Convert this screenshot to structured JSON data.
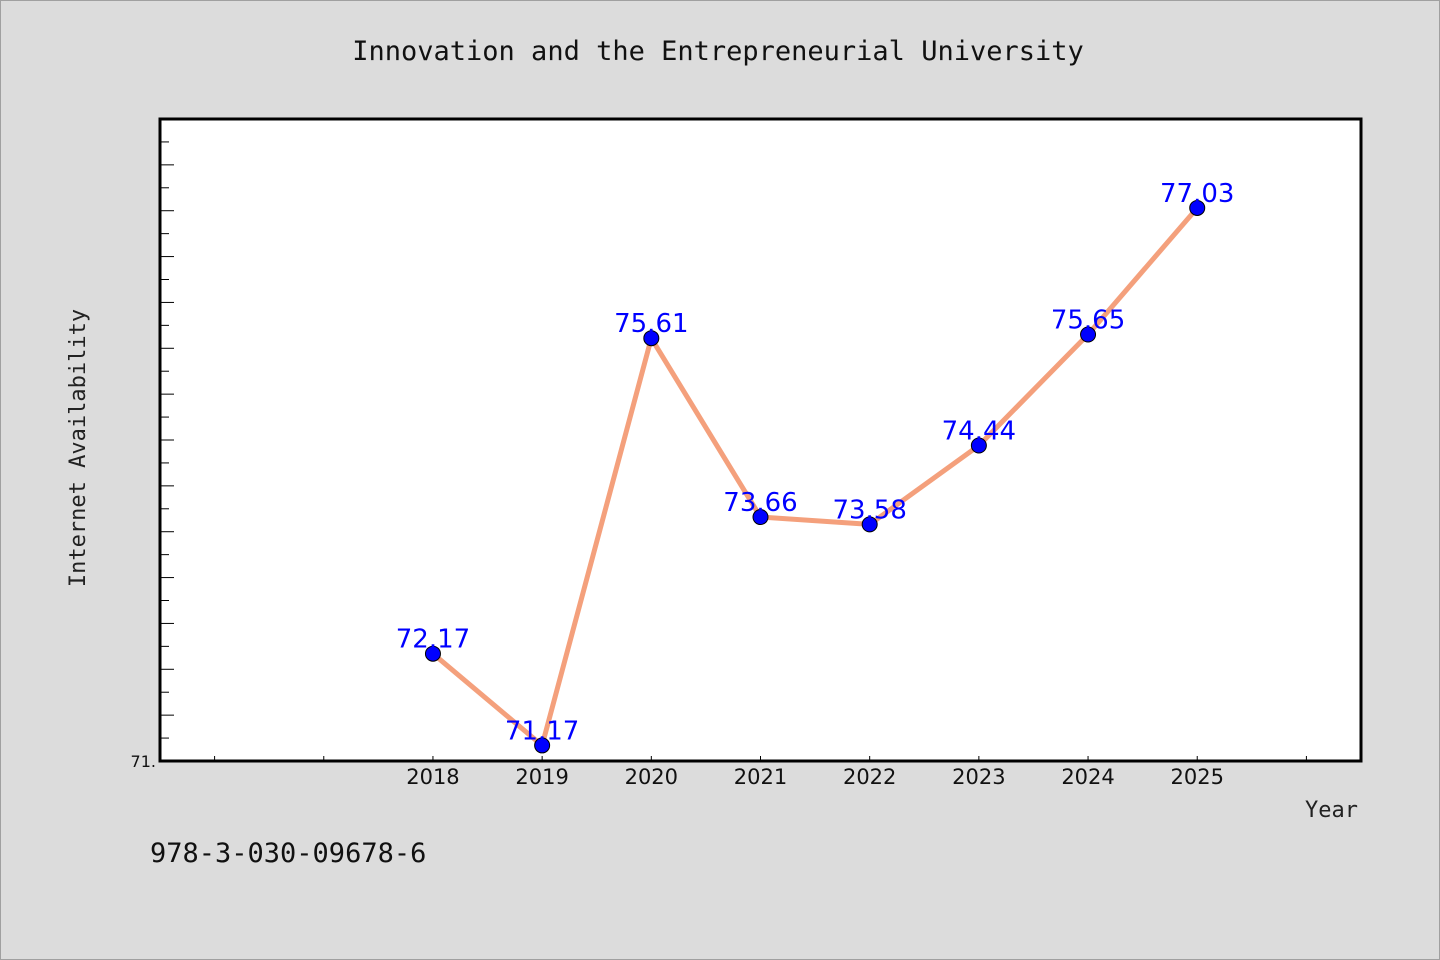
{
  "chart_data": {
    "type": "line",
    "title": "Innovation and the Entrepreneurial University",
    "xlabel": "Year",
    "ylabel": "Internet Availability",
    "x": [
      "2018",
      "2019",
      "2020",
      "2021",
      "2022",
      "2023",
      "2024",
      "2025"
    ],
    "series": [
      {
        "values": [
          72.17,
          71.17,
          75.61,
          73.66,
          73.58,
          74.44,
          75.65,
          77.03
        ],
        "labels": [
          "72.17",
          "71.17",
          "75.61",
          "73.66",
          "73.58",
          "74.44",
          "75.65",
          "77.03"
        ]
      }
    ],
    "ylim": [
      71.0,
      78.0
    ],
    "yticks": [
      {
        "value": 71.0,
        "label": "71."
      }
    ],
    "xlim": [
      2015.5,
      2026.5
    ],
    "line_color": "#f4a07c",
    "marker_color": "#0000ff",
    "label_color": "#0000ff",
    "grid": false,
    "legend": "none"
  },
  "footer_text": "978-3-030-09678-6"
}
